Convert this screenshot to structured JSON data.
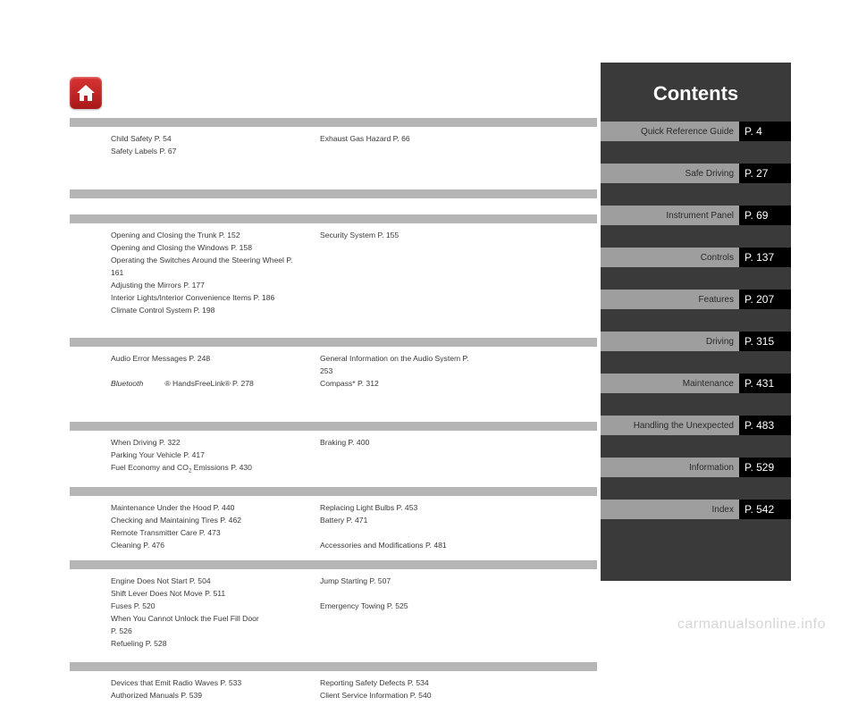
{
  "sidebar": {
    "title": "Contents",
    "items": [
      {
        "label": "Quick Reference Guide",
        "page": "P. 4"
      },
      {
        "label": "Safe Driving",
        "page": "P. 27"
      },
      {
        "label": "Instrument Panel",
        "page": "P. 69"
      },
      {
        "label": "Controls",
        "page": "P. 137"
      },
      {
        "label": "Features",
        "page": "P. 207"
      },
      {
        "label": "Driving",
        "page": "P. 315"
      },
      {
        "label": "Maintenance",
        "page": "P. 431"
      },
      {
        "label": "Handling the Unexpected",
        "page": "P. 483"
      },
      {
        "label": "Information",
        "page": "P. 529"
      },
      {
        "label": "Index",
        "page": "P. 542"
      }
    ]
  },
  "sections": [
    {
      "rows": [
        [
          "Child Safety P. 54",
          "Exhaust Gas Hazard P. 66",
          "Safety Labels P. 67"
        ]
      ],
      "spacer_after": 30
    },
    {
      "rows": [],
      "spacer_after": 18
    },
    {
      "rows": [
        [
          "Opening and Closing the Trunk P. 152",
          "Security System P. 155",
          "Opening and Closing the Windows P. 158"
        ],
        [
          "Operating the Switches Around the Steering Wheel P. 161",
          "",
          "Adjusting the Mirrors P. 177"
        ],
        [
          "Interior Lights/Interior Convenience Items P. 186",
          "",
          "Climate Control System P. 198"
        ]
      ],
      "spacer_after": 18
    },
    {
      "rows": [
        [
          "Audio Error Messages P. 248",
          "General Information on the Audio System P. 253",
          ""
        ],
        [
          "Bluetooth® HandsFreeLink® P. 278",
          "Compass* P. 312",
          ""
        ]
      ],
      "spacer_after": 30,
      "italic_first": true
    },
    {
      "rows": [
        [
          "When Driving P. 322",
          "Braking P. 400",
          "Parking Your Vehicle P. 417"
        ],
        [
          "Fuel Economy and CO₂ Emissions P. 430",
          "",
          ""
        ]
      ],
      "spacer_after": 4
    },
    {
      "rows": [
        [
          "Maintenance Under the Hood P. 440",
          "Replacing Light Bulbs P. 453",
          ""
        ],
        [
          "Checking and Maintaining Tires P. 462",
          "Battery P. 471",
          "Remote Transmitter Care P. 473"
        ],
        [
          "Cleaning P. 476",
          "Accessories and Modifications P. 481",
          ""
        ]
      ],
      "spacer_after": 4
    },
    {
      "rows": [
        [
          "Engine Does Not Start P. 504",
          "Jump Starting P. 507",
          "Shift Lever Does Not Move P. 511"
        ],
        [
          "Fuses P. 520",
          "Emergency Towing P. 525",
          "When You Cannot Unlock the Fuel Fill Door P. 526"
        ],
        [
          "Refueling P. 528",
          "",
          ""
        ]
      ],
      "spacer_after": 0
    },
    {
      "rows": [
        [
          "Devices that Emit Radio Waves P. 533",
          "Reporting Safety Defects P. 534",
          ""
        ],
        [
          "Authorized Manuals P. 539",
          "Client Service Information P. 540",
          ""
        ]
      ],
      "spacer_after": 0
    }
  ],
  "watermark": "carmanualsonline.info",
  "colors": {
    "sidebar_bg": "#3a3a3a",
    "toc_label_bg": "#9e9e9e",
    "toc_page_bg": "#000000",
    "gray_bar": "#b5b5b5",
    "text": "#3a3a3a",
    "home_button": "#c02020"
  }
}
